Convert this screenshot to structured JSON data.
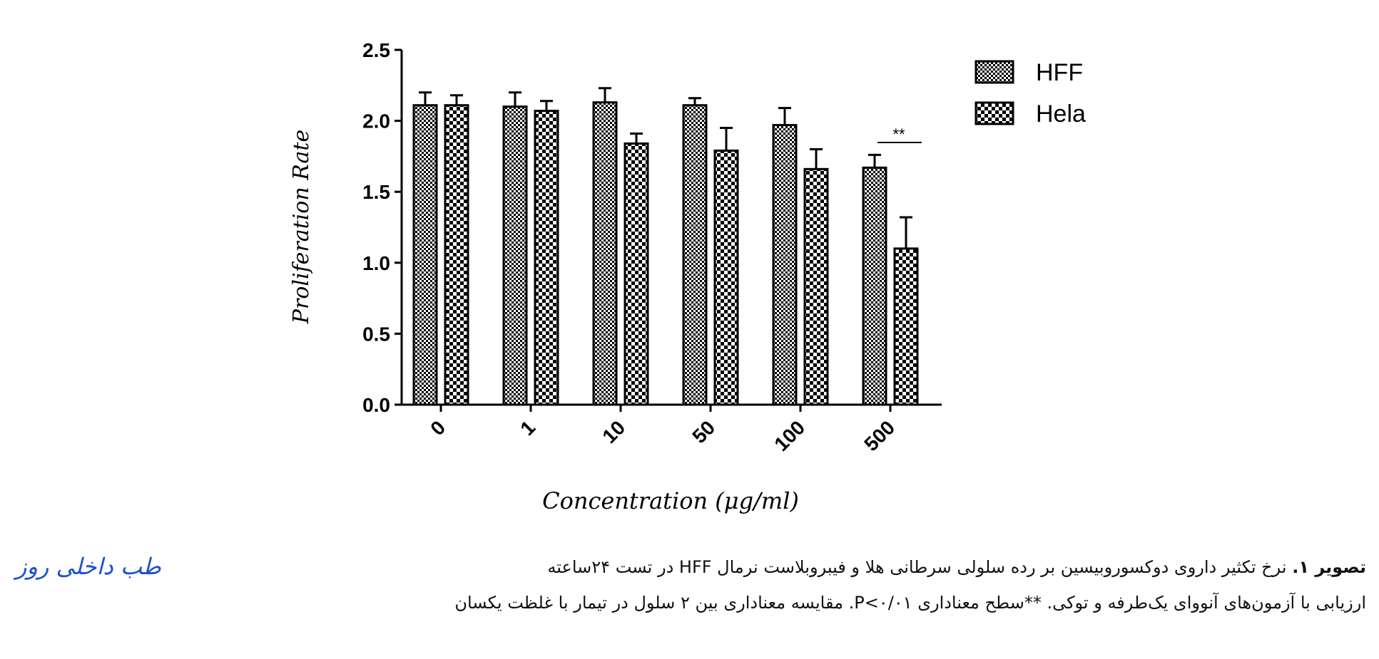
{
  "chart_data": {
    "type": "bar",
    "title": "",
    "xlabel": "Concentration (μg/ml)",
    "ylabel": "Proliferation Rate",
    "ylim": [
      0,
      2.5
    ],
    "yticks": [
      "0.0",
      "0.5",
      "1.0",
      "1.5",
      "2.0",
      "2.5"
    ],
    "categories": [
      "0",
      "1",
      "10",
      "50",
      "100",
      "500"
    ],
    "series": [
      {
        "name": "HFF",
        "values": [
          2.11,
          2.1,
          2.13,
          2.11,
          1.97,
          1.67
        ],
        "errors": [
          0.09,
          0.1,
          0.1,
          0.05,
          0.12,
          0.09
        ]
      },
      {
        "name": "Hela",
        "values": [
          2.11,
          2.07,
          1.84,
          1.79,
          1.66,
          1.1
        ],
        "errors": [
          0.07,
          0.07,
          0.07,
          0.16,
          0.14,
          0.22
        ]
      }
    ],
    "legend_position": "top-right",
    "grid": false,
    "annotation": {
      "text": "**",
      "category": "500"
    }
  },
  "caption": {
    "label": "تصویر ۱.",
    "line1": " نرخ تکثیر داروی دوکسوروبیسین بر رده سلولی سرطانی هلا و فیبروبلاست نرمال HFF در تست ۲۴ساعته",
    "line2": "ارزیابی با آزمون‌های آنووای یک‌طرفه و توکی. **سطح معناداری P<۰/۰۱. مقایسه معناداری بین ۲ سلول در تیمار با غلظت یکسان"
  },
  "logo": {
    "text": "طب داخلی روز",
    "color": "#1a4fd6"
  }
}
